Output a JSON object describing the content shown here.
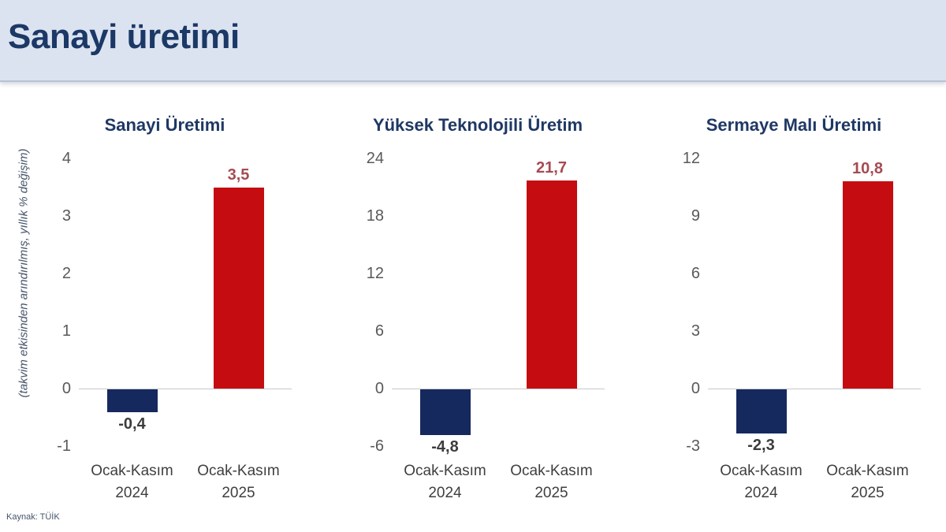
{
  "header": {
    "title": "Sanayi üretimi"
  },
  "y_axis_note": "(takvim etkisinden arındırılmış, yıllık % değişim)",
  "footer": {
    "source": "Kaynak: TÜİK"
  },
  "colors": {
    "header_bg": "#dce3f0",
    "heading_text": "#1b3866",
    "chart_title_text": "#1f3864",
    "navy_bar": "#16295e",
    "red_bar": "#c50d11",
    "positive_value_label": "#a54b51",
    "negative_value_label": "#3c3c3c",
    "tick_label": "#595959",
    "category_label": "#3f3f3f",
    "zero_line": "#c9c9c9"
  },
  "chart_data": [
    {
      "type": "bar",
      "title": "Sanayi Üretimi",
      "ylabel": "(takvim etkisinden arındırılmış, yıllık % değişim)",
      "categories": [
        [
          "Ocak-Kasım",
          "2024"
        ],
        [
          "Ocak-Kasım",
          "2025"
        ]
      ],
      "values": [
        -0.4,
        3.5
      ],
      "value_labels": [
        "-0,4",
        "3,5"
      ],
      "bar_colors": [
        "#16295e",
        "#c50d11"
      ],
      "yticks": [
        4,
        3,
        2,
        1,
        0,
        -1
      ],
      "ylim": [
        -1,
        4
      ],
      "grid": false,
      "legend": false
    },
    {
      "type": "bar",
      "title": "Yüksek Teknolojili Üretim",
      "ylabel": "(takvim etkisinden arındırılmış, yıllık % değişim)",
      "categories": [
        [
          "Ocak-Kasım",
          "2024"
        ],
        [
          "Ocak-Kasım",
          "2025"
        ]
      ],
      "values": [
        -4.8,
        21.7
      ],
      "value_labels": [
        "-4,8",
        "21,7"
      ],
      "bar_colors": [
        "#16295e",
        "#c50d11"
      ],
      "yticks": [
        24,
        18,
        12,
        6,
        0,
        -6
      ],
      "ylim": [
        -6,
        24
      ],
      "grid": false,
      "legend": false
    },
    {
      "type": "bar",
      "title": "Sermaye Malı Üretimi",
      "ylabel": "(takvim etkisinden arındırılmış, yıllık % değişim)",
      "categories": [
        [
          "Ocak-Kasım",
          "2024"
        ],
        [
          "Ocak-Kasım",
          "2025"
        ]
      ],
      "values": [
        -2.3,
        10.8
      ],
      "value_labels": [
        "-2,3",
        "10,8"
      ],
      "bar_colors": [
        "#16295e",
        "#c50d11"
      ],
      "yticks": [
        12,
        9,
        6,
        3,
        0,
        -3
      ],
      "ylim": [
        -3,
        12
      ],
      "grid": false,
      "legend": false
    }
  ]
}
